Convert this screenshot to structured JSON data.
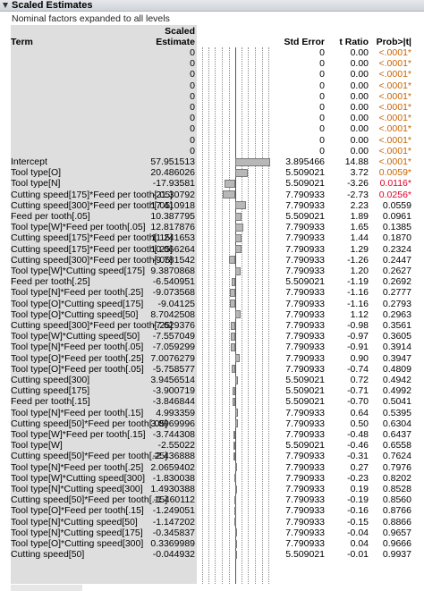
{
  "panel": {
    "title": "Scaled Estimates",
    "subtitle": "Nominal factors expanded to all levels"
  },
  "table": {
    "headers": {
      "term": "Term",
      "estimate_line1": "Scaled",
      "estimate_line2": "Estimate",
      "std_error": "Std Error",
      "t_ratio": "t Ratio",
      "prob": "Prob>|t|"
    },
    "rows": [
      {
        "term": "",
        "estimate": "0",
        "estimate_value": 0,
        "std_error": "0",
        "t_ratio": "0.00",
        "prob": "<.0001*",
        "flag": "sig1"
      },
      {
        "term": "",
        "estimate": "0",
        "estimate_value": 0,
        "std_error": "0",
        "t_ratio": "0.00",
        "prob": "<.0001*",
        "flag": "sig1"
      },
      {
        "term": "",
        "estimate": "0",
        "estimate_value": 0,
        "std_error": "0",
        "t_ratio": "0.00",
        "prob": "<.0001*",
        "flag": "sig1"
      },
      {
        "term": "",
        "estimate": "0",
        "estimate_value": 0,
        "std_error": "0",
        "t_ratio": "0.00",
        "prob": "<.0001*",
        "flag": "sig1"
      },
      {
        "term": "",
        "estimate": "0",
        "estimate_value": 0,
        "std_error": "0",
        "t_ratio": "0.00",
        "prob": "<.0001*",
        "flag": "sig1"
      },
      {
        "term": "",
        "estimate": "0",
        "estimate_value": 0,
        "std_error": "0",
        "t_ratio": "0.00",
        "prob": "<.0001*",
        "flag": "sig1"
      },
      {
        "term": "",
        "estimate": "0",
        "estimate_value": 0,
        "std_error": "0",
        "t_ratio": "0.00",
        "prob": "<.0001*",
        "flag": "sig1"
      },
      {
        "term": "",
        "estimate": "0",
        "estimate_value": 0,
        "std_error": "0",
        "t_ratio": "0.00",
        "prob": "<.0001*",
        "flag": "sig1"
      },
      {
        "term": "",
        "estimate": "0",
        "estimate_value": 0,
        "std_error": "0",
        "t_ratio": "0.00",
        "prob": "<.0001*",
        "flag": "sig1"
      },
      {
        "term": "",
        "estimate": "0",
        "estimate_value": 0,
        "std_error": "0",
        "t_ratio": "0.00",
        "prob": "<.0001*",
        "flag": "sig1"
      },
      {
        "term": "Intercept",
        "estimate": "57.951513",
        "estimate_value": 57.951513,
        "std_error": "3.895466",
        "t_ratio": "14.88",
        "prob": "<.0001*",
        "flag": "sig1"
      },
      {
        "term": "Tool type[O]",
        "estimate": "20.486026",
        "estimate_value": 20.486026,
        "std_error": "5.509021",
        "t_ratio": "3.72",
        "prob": "0.0059*",
        "flag": "sig1"
      },
      {
        "term": "Tool type[N]",
        "estimate": "-17.93581",
        "estimate_value": -17.93581,
        "std_error": "5.509021",
        "t_ratio": "-3.26",
        "prob": "0.0116*",
        "flag": "sig2"
      },
      {
        "term": "Cutting speed[175]*Feed per tooth[.05]",
        "estimate": "-21.30792",
        "estimate_value": -21.30792,
        "std_error": "7.790933",
        "t_ratio": "-2.73",
        "prob": "0.0256*",
        "flag": "sig2"
      },
      {
        "term": "Cutting speed[300]*Feed per tooth[.05]",
        "estimate": "17.410918",
        "estimate_value": 17.410918,
        "std_error": "7.790933",
        "t_ratio": "2.23",
        "prob": "0.0559",
        "flag": ""
      },
      {
        "term": "Feed per tooth[.05]",
        "estimate": "10.387795",
        "estimate_value": 10.387795,
        "std_error": "5.509021",
        "t_ratio": "1.89",
        "prob": "0.0961",
        "flag": ""
      },
      {
        "term": "Tool type[W]*Feed per tooth[.05]",
        "estimate": "12.817876",
        "estimate_value": 12.817876,
        "std_error": "7.790933",
        "t_ratio": "1.65",
        "prob": "0.1385",
        "flag": ""
      },
      {
        "term": "Cutting speed[175]*Feed per tooth[.15]",
        "estimate": "11.241653",
        "estimate_value": 11.241653,
        "std_error": "7.790933",
        "t_ratio": "1.44",
        "prob": "0.1870",
        "flag": ""
      },
      {
        "term": "Cutting speed[175]*Feed per tooth[.25]",
        "estimate": "10.066264",
        "estimate_value": 10.066264,
        "std_error": "7.790933",
        "t_ratio": "1.29",
        "prob": "0.2324",
        "flag": ""
      },
      {
        "term": "Cutting speed[300]*Feed per tooth[.05]",
        "estimate": "-9.781542",
        "estimate_value": -9.781542,
        "std_error": "7.790933",
        "t_ratio": "-1.26",
        "prob": "0.2447",
        "flag": ""
      },
      {
        "term": "Tool type[W]*Cutting speed[175]",
        "estimate": "9.3870868",
        "estimate_value": 9.3870868,
        "std_error": "7.790933",
        "t_ratio": "1.20",
        "prob": "0.2627",
        "flag": ""
      },
      {
        "term": "Feed per tooth[.25]",
        "estimate": "-6.540951",
        "estimate_value": -6.540951,
        "std_error": "5.509021",
        "t_ratio": "-1.19",
        "prob": "0.2692",
        "flag": ""
      },
      {
        "term": "Tool type[N]*Feed per tooth[.25]",
        "estimate": "-9.073568",
        "estimate_value": -9.073568,
        "std_error": "7.790933",
        "t_ratio": "-1.16",
        "prob": "0.2777",
        "flag": ""
      },
      {
        "term": "Tool type[O]*Cutting speed[175]",
        "estimate": "-9.04125",
        "estimate_value": -9.04125,
        "std_error": "7.790933",
        "t_ratio": "-1.16",
        "prob": "0.2793",
        "flag": ""
      },
      {
        "term": "Tool type[O]*Cutting speed[50]",
        "estimate": "8.7042508",
        "estimate_value": 8.7042508,
        "std_error": "7.790933",
        "t_ratio": "1.12",
        "prob": "0.2963",
        "flag": ""
      },
      {
        "term": "Cutting speed[300]*Feed per tooth[.25]",
        "estimate": "-7.629376",
        "estimate_value": -7.629376,
        "std_error": "7.790933",
        "t_ratio": "-0.98",
        "prob": "0.3561",
        "flag": ""
      },
      {
        "term": "Tool type[W]*Cutting speed[50]",
        "estimate": "-7.557049",
        "estimate_value": -7.557049,
        "std_error": "7.790933",
        "t_ratio": "-0.97",
        "prob": "0.3605",
        "flag": ""
      },
      {
        "term": "Tool type[N]*Feed per tooth[.05]",
        "estimate": "-7.059299",
        "estimate_value": -7.059299,
        "std_error": "7.790933",
        "t_ratio": "-0.91",
        "prob": "0.3914",
        "flag": ""
      },
      {
        "term": "Tool type[O]*Feed per tooth[.25]",
        "estimate": "7.0076279",
        "estimate_value": 7.0076279,
        "std_error": "7.790933",
        "t_ratio": "0.90",
        "prob": "0.3947",
        "flag": ""
      },
      {
        "term": "Tool type[O]*Feed per tooth[.05]",
        "estimate": "-5.758577",
        "estimate_value": -5.758577,
        "std_error": "7.790933",
        "t_ratio": "-0.74",
        "prob": "0.4809",
        "flag": ""
      },
      {
        "term": "Cutting speed[300]",
        "estimate": "3.9456514",
        "estimate_value": 3.9456514,
        "std_error": "5.509021",
        "t_ratio": "0.72",
        "prob": "0.4942",
        "flag": ""
      },
      {
        "term": "Cutting speed[175]",
        "estimate": "-3.900719",
        "estimate_value": -3.900719,
        "std_error": "5.509021",
        "t_ratio": "-0.71",
        "prob": "0.4992",
        "flag": ""
      },
      {
        "term": "Feed per tooth[.15]",
        "estimate": "-3.846844",
        "estimate_value": -3.846844,
        "std_error": "5.509021",
        "t_ratio": "-0.70",
        "prob": "0.5041",
        "flag": ""
      },
      {
        "term": "Tool type[N]*Feed per tooth[.15]",
        "estimate": "4.993359",
        "estimate_value": 4.993359,
        "std_error": "7.790933",
        "t_ratio": "0.64",
        "prob": "0.5395",
        "flag": ""
      },
      {
        "term": "Cutting speed[50]*Feed per tooth[.05]",
        "estimate": "3.8969996",
        "estimate_value": 3.8969996,
        "std_error": "7.790933",
        "t_ratio": "0.50",
        "prob": "0.6304",
        "flag": ""
      },
      {
        "term": "Tool type[W]*Feed per tooth[.15]",
        "estimate": "-3.744308",
        "estimate_value": -3.744308,
        "std_error": "7.790933",
        "t_ratio": "-0.48",
        "prob": "0.6437",
        "flag": ""
      },
      {
        "term": "Tool type[W]",
        "estimate": "-2.55022",
        "estimate_value": -2.55022,
        "std_error": "5.509021",
        "t_ratio": "-0.46",
        "prob": "0.6558",
        "flag": ""
      },
      {
        "term": "Cutting speed[50]*Feed per tooth[.25]",
        "estimate": "-2.436888",
        "estimate_value": -2.436888,
        "std_error": "7.790933",
        "t_ratio": "-0.31",
        "prob": "0.7624",
        "flag": ""
      },
      {
        "term": "Tool type[N]*Feed per tooth[.25]",
        "estimate": "2.0659402",
        "estimate_value": 2.0659402,
        "std_error": "7.790933",
        "t_ratio": "0.27",
        "prob": "0.7976",
        "flag": ""
      },
      {
        "term": "Tool type[W]*Cutting speed[300]",
        "estimate": "-1.830038",
        "estimate_value": -1.830038,
        "std_error": "7.790933",
        "t_ratio": "-0.23",
        "prob": "0.8202",
        "flag": ""
      },
      {
        "term": "Tool type[N]*Cutting speed[300]",
        "estimate": "1.4930388",
        "estimate_value": 1.4930388,
        "std_error": "7.790933",
        "t_ratio": "0.19",
        "prob": "0.8528",
        "flag": ""
      },
      {
        "term": "Cutting speed[50]*Feed per tooth[.15]",
        "estimate": "-1.460112",
        "estimate_value": -1.460112,
        "std_error": "7.790933",
        "t_ratio": "-0.19",
        "prob": "0.8560",
        "flag": ""
      },
      {
        "term": "Tool type[O]*Feed per tooth[.15]",
        "estimate": "-1.249051",
        "estimate_value": -1.249051,
        "std_error": "7.790933",
        "t_ratio": "-0.16",
        "prob": "0.8766",
        "flag": ""
      },
      {
        "term": "Tool type[N]*Cutting speed[50]",
        "estimate": "-1.147202",
        "estimate_value": -1.147202,
        "std_error": "7.790933",
        "t_ratio": "-0.15",
        "prob": "0.8866",
        "flag": ""
      },
      {
        "term": "Tool type[N]*Cutting speed[175]",
        "estimate": "-0.345837",
        "estimate_value": -0.345837,
        "std_error": "7.790933",
        "t_ratio": "-0.04",
        "prob": "0.9657",
        "flag": ""
      },
      {
        "term": "Tool type[O]*Cutting speed[300]",
        "estimate": "0.3369989",
        "estimate_value": 0.3369989,
        "std_error": "7.790933",
        "t_ratio": "0.04",
        "prob": "0.9666",
        "flag": ""
      },
      {
        "term": "Cutting speed[50]",
        "estimate": "-0.044932",
        "estimate_value": -0.044932,
        "std_error": "5.509021",
        "t_ratio": "-0.01",
        "prob": "0.9937",
        "flag": ""
      }
    ]
  },
  "bar_chart": {
    "scale_max": 60,
    "bar_fill": "#b8b8b8",
    "bar_border": "#7a7a7a"
  },
  "colors": {
    "significant_orange": "#c86400",
    "significant_red": "#e0002a",
    "term_column_bg": "#dedede"
  }
}
